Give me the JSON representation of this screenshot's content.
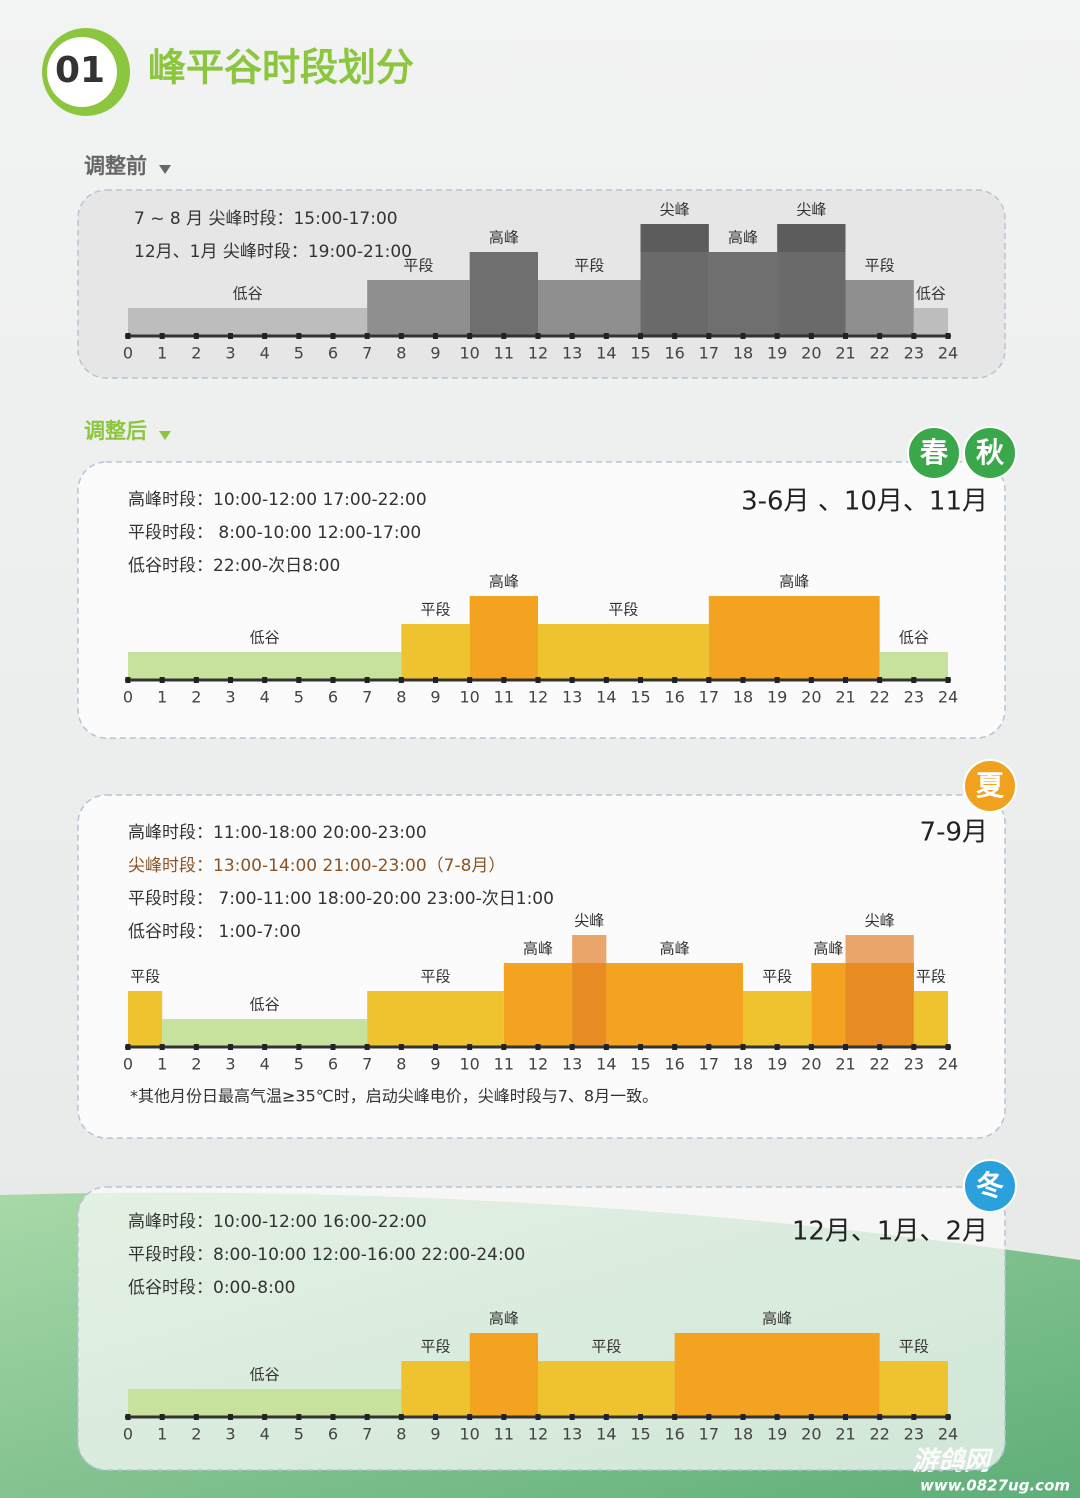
{
  "header": {
    "number": "01",
    "title": "峰平谷时段划分"
  },
  "sections": {
    "before": "调整前",
    "after": "调整后"
  },
  "watermark": {
    "name": "游鸽网",
    "url": "www.0827ug.com"
  },
  "chart_data": [
    {
      "type": "timeline",
      "info": [
        "7 ~ 8 月  尖峰时段：15:00-17:00",
        "12月、1月  尖峰时段：19:00-21:00"
      ],
      "xlim": [
        0,
        24
      ],
      "xticks": [
        0,
        1,
        2,
        3,
        4,
        5,
        6,
        7,
        8,
        9,
        10,
        11,
        12,
        13,
        14,
        15,
        16,
        17,
        18,
        19,
        20,
        21,
        22,
        23,
        24
      ],
      "ylim": [
        0,
        4
      ],
      "colors": [
        "#bdbdbd",
        "#8f8f8f",
        "#6f6f6f",
        "#5c5c5c"
      ],
      "segments": [
        {
          "start": 0,
          "end": 7,
          "value": 1,
          "label": "低谷"
        },
        {
          "start": 7,
          "end": 10,
          "value": 2,
          "label": "平段"
        },
        {
          "start": 10,
          "end": 12,
          "value": 3,
          "label": "高峰"
        },
        {
          "start": 12,
          "end": 15,
          "value": 2,
          "label": "平段"
        },
        {
          "start": 15,
          "end": 17,
          "value": 4,
          "label": "尖峰"
        },
        {
          "start": 17,
          "end": 19,
          "value": 3,
          "label": "高峰"
        },
        {
          "start": 19,
          "end": 21,
          "value": 4,
          "label": "尖峰"
        },
        {
          "start": 21,
          "end": 23,
          "value": 2,
          "label": "平段"
        },
        {
          "start": 23,
          "end": 24,
          "value": 1,
          "label": "低谷"
        }
      ]
    },
    {
      "type": "timeline",
      "badges": [
        "春",
        "秋"
      ],
      "badge_color": "#3aa84a",
      "months": "3-6月 、10月、11月",
      "info": [
        "高峰时段：10:00-12:00  17:00-22:00",
        "平段时段：  8:00-10:00  12:00-17:00",
        "低谷时段：22:00-次日8:00"
      ],
      "xlim": [
        0,
        24
      ],
      "xticks": [
        0,
        1,
        2,
        3,
        4,
        5,
        6,
        7,
        8,
        9,
        10,
        11,
        12,
        13,
        14,
        15,
        16,
        17,
        18,
        19,
        20,
        21,
        22,
        23,
        24
      ],
      "ylim": [
        0,
        4
      ],
      "colors": [
        "#c7e29c",
        "#efc22f",
        "#f3a31f",
        "#eaa56b"
      ],
      "segments": [
        {
          "start": 0,
          "end": 8,
          "value": 1,
          "label": "低谷"
        },
        {
          "start": 8,
          "end": 10,
          "value": 2,
          "label": "平段"
        },
        {
          "start": 10,
          "end": 12,
          "value": 3,
          "label": "高峰"
        },
        {
          "start": 12,
          "end": 17,
          "value": 2,
          "label": "平段"
        },
        {
          "start": 17,
          "end": 22,
          "value": 3,
          "label": "高峰"
        },
        {
          "start": 22,
          "end": 24,
          "value": 1,
          "label": "低谷"
        }
      ]
    },
    {
      "type": "timeline",
      "badges": [
        "夏"
      ],
      "badge_color": "#f0a21e",
      "months": "7-9月",
      "info": [
        "高峰时段：11:00-18:00  20:00-23:00",
        "尖峰时段：13:00-14:00  21:00-23:00（7-8月）",
        "平段时段：  7:00-11:00  18:00-20:00  23:00-次日1:00",
        "低谷时段：  1:00-7:00"
      ],
      "note": "*其他月份日最高气温≥35℃时，启动尖峰电价，尖峰时段与7、8月一致。",
      "xlim": [
        0,
        24
      ],
      "xticks": [
        0,
        1,
        2,
        3,
        4,
        5,
        6,
        7,
        8,
        9,
        10,
        11,
        12,
        13,
        14,
        15,
        16,
        17,
        18,
        19,
        20,
        21,
        22,
        23,
        24
      ],
      "ylim": [
        0,
        4
      ],
      "colors": [
        "#c7e29c",
        "#efc22f",
        "#f3a31f",
        "#eaa56b"
      ],
      "segments": [
        {
          "start": 0,
          "end": 1,
          "value": 2,
          "label": "平段"
        },
        {
          "start": 1,
          "end": 7,
          "value": 1,
          "label": "低谷"
        },
        {
          "start": 7,
          "end": 11,
          "value": 2,
          "label": "平段"
        },
        {
          "start": 11,
          "end": 13,
          "value": 3,
          "label": "高峰"
        },
        {
          "start": 13,
          "end": 14,
          "value": 4,
          "label": "尖峰"
        },
        {
          "start": 14,
          "end": 18,
          "value": 3,
          "label": "高峰"
        },
        {
          "start": 18,
          "end": 20,
          "value": 2,
          "label": "平段"
        },
        {
          "start": 20,
          "end": 21,
          "value": 3,
          "label": "高峰"
        },
        {
          "start": 21,
          "end": 23,
          "value": 4,
          "label": "尖峰"
        },
        {
          "start": 23,
          "end": 24,
          "value": 2,
          "label": "平段"
        }
      ]
    },
    {
      "type": "timeline",
      "badges": [
        "冬"
      ],
      "badge_color": "#2aa0dc",
      "months": "12月、1月、2月",
      "info": [
        "高峰时段：10:00-12:00  16:00-22:00",
        "平段时段：8:00-10:00  12:00-16:00  22:00-24:00",
        "低谷时段：0:00-8:00"
      ],
      "xlim": [
        0,
        24
      ],
      "xticks": [
        0,
        1,
        2,
        3,
        4,
        5,
        6,
        7,
        8,
        9,
        10,
        11,
        12,
        13,
        14,
        15,
        16,
        17,
        18,
        19,
        20,
        21,
        22,
        23,
        24
      ],
      "ylim": [
        0,
        4
      ],
      "colors": [
        "#c7e29c",
        "#efc22f",
        "#f3a31f",
        "#eaa56b"
      ],
      "segments": [
        {
          "start": 0,
          "end": 8,
          "value": 1,
          "label": "低谷"
        },
        {
          "start": 8,
          "end": 10,
          "value": 2,
          "label": "平段"
        },
        {
          "start": 10,
          "end": 12,
          "value": 3,
          "label": "高峰"
        },
        {
          "start": 12,
          "end": 16,
          "value": 2,
          "label": "平段"
        },
        {
          "start": 16,
          "end": 22,
          "value": 3,
          "label": "高峰"
        },
        {
          "start": 22,
          "end": 24,
          "value": 2,
          "label": "平段"
        }
      ]
    }
  ]
}
